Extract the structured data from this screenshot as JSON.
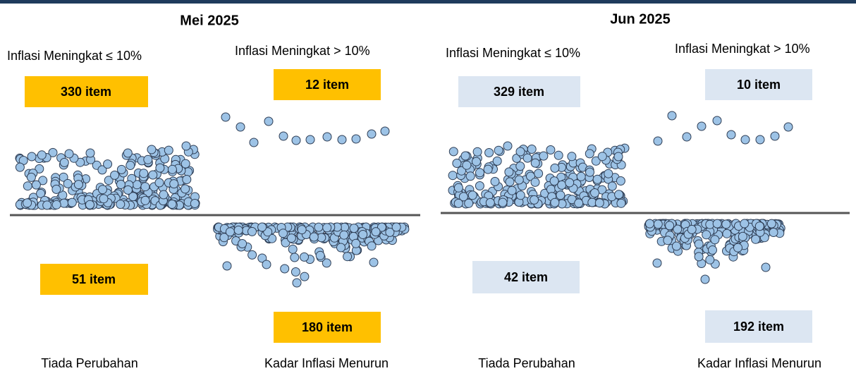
{
  "panels": [
    {
      "title": "Mei 2025",
      "rising_low": {
        "label": "Inflasi Meningkat ≤ 10%",
        "count": "330 item"
      },
      "rising_high": {
        "label": "Inflasi Meningkat > 10%",
        "count": "12 item"
      },
      "unchanged": {
        "label": "Tiada Perubahan",
        "count": "51 item"
      },
      "falling": {
        "label": "Kadar Inflasi Menurun",
        "count": "180 item"
      }
    },
    {
      "title": "Jun 2025",
      "rising_low": {
        "label": "Inflasi Meningkat ≤ 10%",
        "count": "329 item"
      },
      "rising_high": {
        "label": "Inflasi Meningkat > 10%",
        "count": "10 item"
      },
      "unchanged": {
        "label": "Tiada Perubahan",
        "count": "42 item"
      },
      "falling": {
        "label": "Kadar Inflasi Menurun",
        "count": "192 item"
      }
    }
  ]
}
